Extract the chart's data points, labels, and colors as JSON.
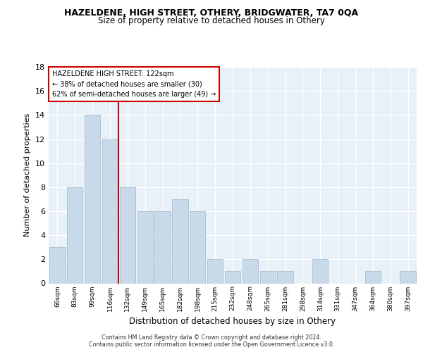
{
  "title": "HAZELDENE, HIGH STREET, OTHERY, BRIDGWATER, TA7 0QA",
  "subtitle": "Size of property relative to detached houses in Othery",
  "xlabel": "Distribution of detached houses by size in Othery",
  "ylabel": "Number of detached properties",
  "categories": [
    "66sqm",
    "83sqm",
    "99sqm",
    "116sqm",
    "132sqm",
    "149sqm",
    "165sqm",
    "182sqm",
    "198sqm",
    "215sqm",
    "232sqm",
    "248sqm",
    "265sqm",
    "281sqm",
    "298sqm",
    "314sqm",
    "331sqm",
    "347sqm",
    "364sqm",
    "380sqm",
    "397sqm"
  ],
  "values": [
    3,
    8,
    14,
    12,
    8,
    6,
    6,
    7,
    6,
    2,
    1,
    2,
    1,
    1,
    0,
    2,
    0,
    0,
    1,
    0,
    1
  ],
  "bar_color": "#c8daea",
  "bar_edge_color": "#aabfcf",
  "vline_color": "#cc0000",
  "vline_pos": 3.5,
  "annotation_title": "HAZELDENE HIGH STREET: 122sqm",
  "annotation_line1": "← 38% of detached houses are smaller (30)",
  "annotation_line2": "62% of semi-detached houses are larger (49) →",
  "annotation_box_facecolor": "#ffffff",
  "annotation_box_edgecolor": "#cc0000",
  "ylim": [
    0,
    18
  ],
  "yticks": [
    0,
    2,
    4,
    6,
    8,
    10,
    12,
    14,
    16,
    18
  ],
  "fig_bg_color": "#ffffff",
  "ax_bg_color": "#e8f0f8",
  "grid_color": "#ffffff",
  "footer_line1": "Contains HM Land Registry data © Crown copyright and database right 2024.",
  "footer_line2": "Contains public sector information licensed under the Open Government Licence v3.0."
}
